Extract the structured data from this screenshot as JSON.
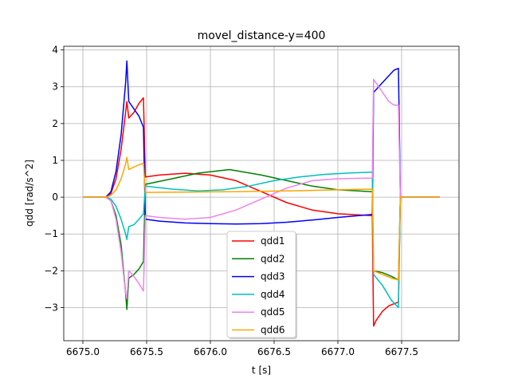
{
  "chart_data": {
    "type": "line",
    "title": "movel_distance-y=400",
    "xlabel": "t [s]",
    "ylabel": "qdd [rad/s^2]",
    "xlim": [
      6674.85,
      6677.95
    ],
    "ylim": [
      -3.9,
      4.1
    ],
    "xticks": [
      6675.0,
      6675.5,
      6676.0,
      6676.5,
      6677.0,
      6677.5
    ],
    "xtick_labels": [
      "6675.0",
      "6675.5",
      "6676.0",
      "6676.5",
      "6677.0",
      "6677.5"
    ],
    "yticks": [
      -3,
      -2,
      -1,
      0,
      1,
      2,
      3,
      4
    ],
    "ytick_labels": [
      "−3",
      "−2",
      "−1",
      "0",
      "1",
      "2",
      "3",
      "4"
    ],
    "grid": true,
    "legend_position": "lower-center",
    "series": [
      {
        "name": "qdd1",
        "color": "#ff0000",
        "x": [
          6675.0,
          6675.18,
          6675.22,
          6675.26,
          6675.3,
          6675.335,
          6675.345,
          6675.36,
          6675.4,
          6675.44,
          6675.475,
          6675.49,
          6675.6,
          6675.8,
          6676.0,
          6676.2,
          6676.4,
          6676.6,
          6676.8,
          6677.0,
          6677.27,
          6677.28,
          6677.3,
          6677.35,
          6677.4,
          6677.475,
          6677.49,
          6677.8
        ],
        "values": [
          0,
          0,
          0.1,
          0.5,
          1.3,
          2.3,
          2.6,
          2.15,
          2.3,
          2.55,
          2.7,
          0.55,
          0.6,
          0.65,
          0.6,
          0.45,
          0.15,
          -0.15,
          -0.35,
          -0.45,
          -0.5,
          -3.5,
          -3.35,
          -3.1,
          -2.95,
          -2.85,
          0,
          0
        ]
      },
      {
        "name": "qdd2",
        "color": "#008000",
        "x": [
          6675.0,
          6675.18,
          6675.22,
          6675.26,
          6675.3,
          6675.335,
          6675.345,
          6675.36,
          6675.4,
          6675.44,
          6675.475,
          6675.49,
          6675.7,
          6675.9,
          6676.15,
          6676.4,
          6676.6,
          6676.8,
          6677.0,
          6677.27,
          6677.28,
          6677.35,
          6677.42,
          6677.475,
          6677.49,
          6677.8
        ],
        "values": [
          0,
          0,
          -0.1,
          -0.5,
          -1.3,
          -2.6,
          -3.05,
          -2.2,
          -2.1,
          -1.95,
          -1.75,
          0.35,
          0.5,
          0.65,
          0.75,
          0.6,
          0.45,
          0.3,
          0.2,
          0.15,
          -2.0,
          -2.05,
          -2.15,
          -2.25,
          0,
          0
        ]
      },
      {
        "name": "qdd3",
        "color": "#0000ff",
        "x": [
          6675.0,
          6675.18,
          6675.22,
          6675.26,
          6675.3,
          6675.335,
          6675.345,
          6675.36,
          6675.4,
          6675.44,
          6675.475,
          6675.49,
          6675.6,
          6675.8,
          6676.0,
          6676.2,
          6676.4,
          6676.6,
          6676.8,
          6677.0,
          6677.27,
          6677.28,
          6677.32,
          6677.36,
          6677.4,
          6677.44,
          6677.475,
          6677.49,
          6677.8
        ],
        "values": [
          0,
          0,
          0.15,
          0.7,
          1.7,
          3.1,
          3.7,
          2.6,
          2.4,
          2.2,
          1.9,
          -0.6,
          -0.65,
          -0.7,
          -0.72,
          -0.73,
          -0.72,
          -0.68,
          -0.62,
          -0.55,
          -0.47,
          2.85,
          3.0,
          3.15,
          3.3,
          3.45,
          3.5,
          0,
          0
        ]
      },
      {
        "name": "qdd4",
        "color": "#00bfbf",
        "x": [
          6675.0,
          6675.18,
          6675.22,
          6675.26,
          6675.3,
          6675.335,
          6675.345,
          6675.36,
          6675.4,
          6675.44,
          6675.475,
          6675.49,
          6675.7,
          6675.9,
          6676.1,
          6676.3,
          6676.5,
          6676.7,
          6676.9,
          6677.1,
          6677.27,
          6677.28,
          6677.35,
          6677.42,
          6677.475,
          6677.49,
          6677.8
        ],
        "values": [
          0,
          0,
          -0.05,
          -0.25,
          -0.6,
          -1.0,
          -1.15,
          -0.8,
          -0.75,
          -0.6,
          -0.45,
          0.3,
          0.22,
          0.17,
          0.2,
          0.3,
          0.45,
          0.55,
          0.62,
          0.66,
          0.68,
          -2.1,
          -2.4,
          -2.8,
          -3.0,
          0,
          0
        ]
      },
      {
        "name": "qdd5",
        "color": "#ee82ee",
        "x": [
          6675.0,
          6675.18,
          6675.22,
          6675.26,
          6675.3,
          6675.335,
          6675.345,
          6675.36,
          6675.4,
          6675.44,
          6675.475,
          6675.49,
          6675.6,
          6675.8,
          6676.0,
          6676.2,
          6676.4,
          6676.6,
          6676.8,
          6677.0,
          6677.27,
          6677.28,
          6677.32,
          6677.36,
          6677.4,
          6677.44,
          6677.475,
          6677.49,
          6677.8
        ],
        "values": [
          0,
          0,
          -0.1,
          -0.6,
          -1.5,
          -2.6,
          -2.75,
          -2.0,
          -2.15,
          -2.35,
          -2.55,
          -0.5,
          -0.55,
          -0.6,
          -0.55,
          -0.35,
          -0.05,
          0.25,
          0.45,
          0.5,
          0.52,
          3.2,
          3.0,
          2.8,
          2.6,
          2.5,
          2.5,
          0,
          0
        ]
      },
      {
        "name": "qdd6",
        "color": "#ffa500",
        "x": [
          6675.0,
          6675.18,
          6675.22,
          6675.26,
          6675.3,
          6675.335,
          6675.345,
          6675.36,
          6675.4,
          6675.44,
          6675.475,
          6675.49,
          6675.8,
          6676.2,
          6676.6,
          6677.0,
          6677.27,
          6677.28,
          6677.35,
          6677.42,
          6677.475,
          6677.49,
          6677.8
        ],
        "values": [
          0,
          0,
          0.05,
          0.2,
          0.5,
          0.9,
          1.08,
          0.75,
          0.82,
          0.88,
          0.92,
          0.13,
          0.14,
          0.15,
          0.17,
          0.2,
          0.22,
          -2.0,
          -2.1,
          -2.2,
          -2.25,
          0,
          0
        ]
      }
    ]
  }
}
